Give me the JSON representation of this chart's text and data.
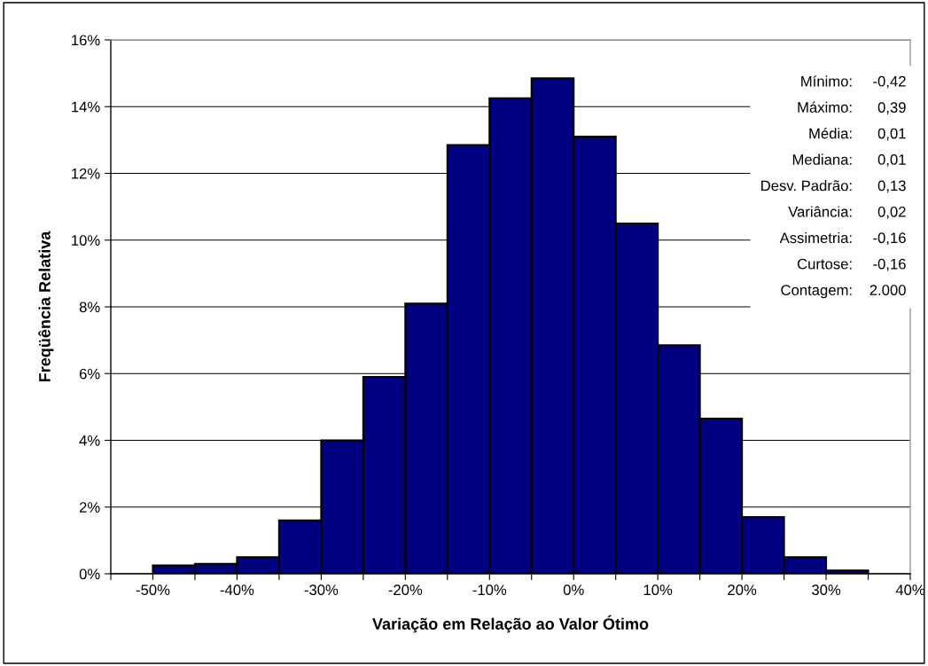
{
  "chart_data": {
    "type": "histogram",
    "xlabel": "Variação em Relação ao Valor Ótimo",
    "ylabel": "Freqüência Relativa",
    "bins": [
      -50,
      -45,
      -40,
      -35,
      -30,
      -25,
      -20,
      -15,
      -10,
      -5,
      0,
      5,
      10,
      15,
      20,
      25,
      30,
      35
    ],
    "values": [
      0.25,
      0.3,
      0.5,
      1.6,
      4.0,
      5.9,
      8.1,
      12.85,
      14.25,
      14.85,
      13.1,
      10.5,
      6.85,
      4.65,
      1.7,
      0.5,
      0.1
    ],
    "color": "#000080",
    "xlim": [
      -55,
      40
    ],
    "xticks": [
      {
        "value": -55,
        "label": null
      },
      {
        "value": -50,
        "label": "-50%"
      },
      {
        "value": -45,
        "label": null
      },
      {
        "value": -40,
        "label": "-40%"
      },
      {
        "value": -35,
        "label": null
      },
      {
        "value": -30,
        "label": "-30%"
      },
      {
        "value": -25,
        "label": null
      },
      {
        "value": -20,
        "label": "-20%"
      },
      {
        "value": -15,
        "label": null
      },
      {
        "value": -10,
        "label": "-10%"
      },
      {
        "value": -5,
        "label": null
      },
      {
        "value": 0,
        "label": "0%"
      },
      {
        "value": 5,
        "label": null
      },
      {
        "value": 10,
        "label": "10%"
      },
      {
        "value": 15,
        "label": null
      },
      {
        "value": 20,
        "label": "20%"
      },
      {
        "value": 25,
        "label": null
      },
      {
        "value": 30,
        "label": "30%"
      },
      {
        "value": 35,
        "label": null
      },
      {
        "value": 40,
        "label": "40%"
      }
    ],
    "ylim": [
      0,
      16
    ],
    "yticks": [
      {
        "value": 0,
        "label": "0%"
      },
      {
        "value": 2,
        "label": "2%"
      },
      {
        "value": 4,
        "label": "4%"
      },
      {
        "value": 6,
        "label": "6%"
      },
      {
        "value": 8,
        "label": "8%"
      },
      {
        "value": 10,
        "label": "10%"
      },
      {
        "value": 12,
        "label": "12%"
      },
      {
        "value": 14,
        "label": "14%"
      },
      {
        "value": 16,
        "label": "16%"
      }
    ],
    "grid": "y",
    "annotations": [
      "Mínimo: -0,42",
      "Máximo: 0,39",
      "Média: 0,01",
      "Mediana: 0,01",
      "Desv. Padrão: 0,13",
      "Variância: 0,02",
      "Assimetria: -0,16",
      "Curtose: -0,16",
      "Contagem: 2.000"
    ]
  }
}
